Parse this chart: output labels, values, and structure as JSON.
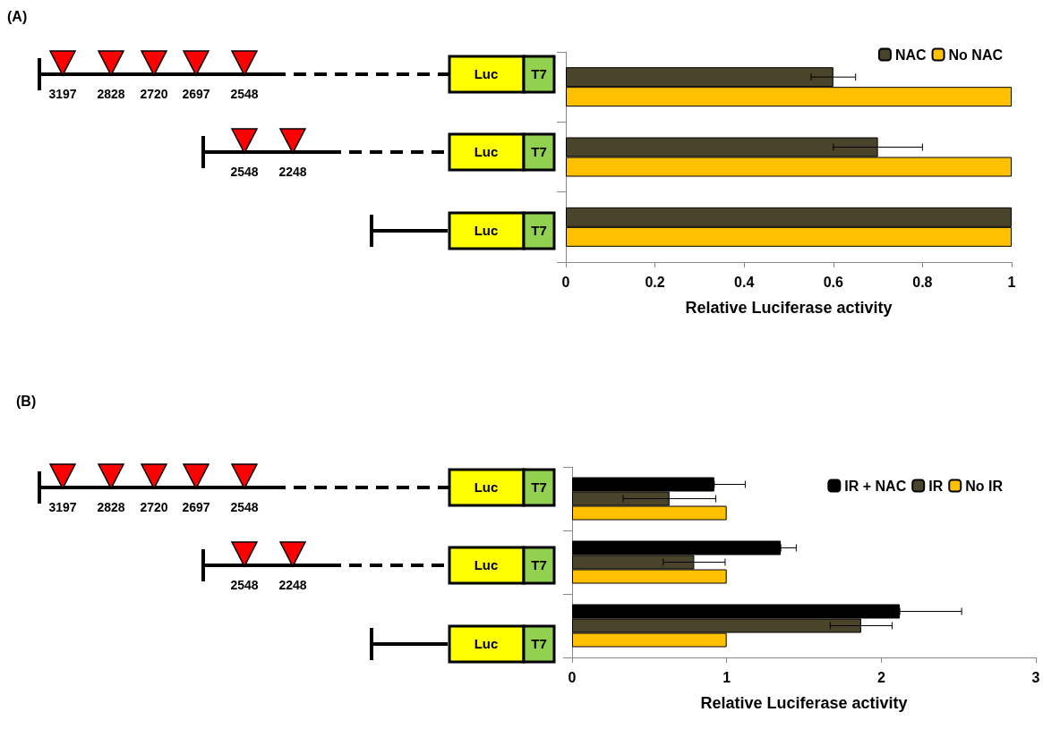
{
  "chart_data": [
    {
      "type": "bar",
      "orientation": "horizontal",
      "xlabel": "Relative Luciferase activity",
      "categories": [
        null,
        null,
        null
      ],
      "series": [
        {
          "name": "NAC",
          "color": "#4a442a",
          "values": [
            0.6,
            0.7,
            1
          ],
          "errors": [
            0.05,
            0.1,
            null
          ]
        },
        {
          "name": "No NAC",
          "color": "#ffc000",
          "values": [
            1,
            1,
            1
          ]
        }
      ],
      "xlim": [
        0,
        1
      ],
      "xticks": [
        0,
        0.2,
        0.4,
        0.6,
        0.8,
        1
      ],
      "grid": false,
      "legend": "top right",
      "annotations": [
        "(A)",
        "3197",
        "2828",
        "2720",
        "2697",
        "2548",
        "2548",
        "2248",
        "Luc",
        "T7"
      ]
    },
    {
      "type": "bar",
      "orientation": "horizontal",
      "xlabel": "Relative Luciferase activity",
      "categories": [
        null,
        null,
        null
      ],
      "series": [
        {
          "name": "IR + NAC",
          "color": "#000000",
          "values": [
            0.92,
            1.35,
            2.12
          ],
          "errors": [
            [
              0.92,
              1.12
            ],
            [
              1.35,
              1.45
            ],
            [
              2.12,
              2.52
            ]
          ]
        },
        {
          "name": "IR",
          "color": "#4a442a",
          "values": [
            0.63,
            0.79,
            1.87
          ],
          "errors": [
            0.3,
            0.2,
            0.2
          ]
        },
        {
          "name": "No IR",
          "color": "#ffc000",
          "values": [
            1,
            1,
            1
          ]
        }
      ],
      "xlim": [
        0,
        3
      ],
      "xticks": [
        0,
        1,
        2,
        3
      ],
      "grid": false,
      "legend": "top right",
      "annotations": [
        "(B)",
        "3197",
        "2828",
        "2720",
        "2697",
        "2548",
        "2548",
        "2248",
        "Luc",
        "T7"
      ]
    }
  ]
}
